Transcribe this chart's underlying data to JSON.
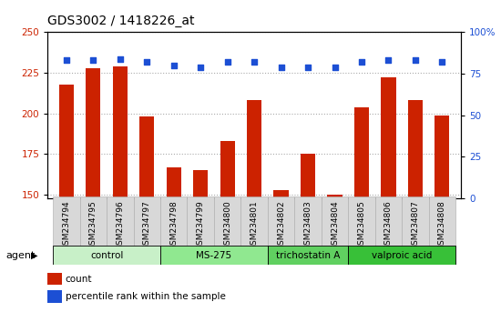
{
  "title": "GDS3002 / 1418226_at",
  "samples": [
    "GSM234794",
    "GSM234795",
    "GSM234796",
    "GSM234797",
    "GSM234798",
    "GSM234799",
    "GSM234800",
    "GSM234801",
    "GSM234802",
    "GSM234803",
    "GSM234804",
    "GSM234805",
    "GSM234806",
    "GSM234807",
    "GSM234808"
  ],
  "counts": [
    218,
    228,
    229,
    198,
    167,
    165,
    183,
    208,
    153,
    175,
    150,
    204,
    222,
    208,
    199
  ],
  "percentiles": [
    83,
    83,
    84,
    82,
    80,
    79,
    82,
    82,
    79,
    79,
    79,
    82,
    83,
    83,
    82
  ],
  "groups": [
    {
      "label": "control",
      "start": 0,
      "end": 3,
      "color": "#c8f0c8"
    },
    {
      "label": "MS-275",
      "start": 4,
      "end": 7,
      "color": "#90e890"
    },
    {
      "label": "trichostatin A",
      "start": 8,
      "end": 10,
      "color": "#60d060"
    },
    {
      "label": "valproic acid",
      "start": 11,
      "end": 14,
      "color": "#38c038"
    }
  ],
  "ylim_left": [
    148,
    250
  ],
  "ylim_right": [
    0,
    100
  ],
  "bar_color": "#cc2200",
  "dot_color": "#1c4fd4",
  "grid_color": "#aaaaaa",
  "yticks_left": [
    150,
    175,
    200,
    225,
    250
  ],
  "yticks_right": [
    0,
    25,
    50,
    75,
    100
  ],
  "bg_color": "#d8d8d8",
  "axis_bg": "#ffffff",
  "agent_label": "agent",
  "legend_count_label": "count",
  "legend_pct_label": "percentile rank within the sample",
  "bar_width": 0.55
}
